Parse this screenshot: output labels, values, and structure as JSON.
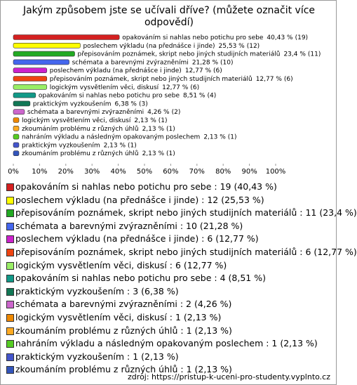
{
  "chart_data": {
    "type": "hbar",
    "title": "Jakým způsobem jste se učívali dříve? (můžete označit více odpovědí)",
    "categories": [
      "opakováním si nahlas nebo potichu pro sebe",
      "poslechem výkladu (na přednášce i jinde)",
      "přepisováním poznámek, skript nebo jiných studijních materiálů",
      "schémata a barevnými zvýrazněními",
      "poslechem výkladu (na přednášce i jinde)",
      "přepisováním poznámek, skript nebo jiných studijních materiálů",
      "logickým vysvětlením věci, diskusí",
      "opakováním si nahlas nebo potichu pro sebe",
      "praktickým vyzkoušením",
      "schémata a barevnými zvýrazněními",
      "logickým vysvětlením věci, diskusí",
      "zkoumáním problému z různých úhlů",
      "nahráním výkladu a následným opakovaným poslechem",
      "praktickým vyzkoušením",
      "zkoumáním problému z různých úhlů"
    ],
    "values": [
      40.43,
      25.53,
      23.4,
      21.28,
      12.77,
      12.77,
      12.77,
      8.51,
      6.38,
      4.26,
      2.13,
      2.13,
      2.13,
      2.13,
      2.13
    ],
    "value_labels": [
      "40,43 %",
      "25,53 %",
      "23,4 %",
      "21,28 %",
      "12,77 %",
      "12,77 %",
      "12,77 %",
      "8,51 %",
      "6,38 %",
      "4,26 %",
      "2,13 %",
      "2,13 %",
      "2,13 %",
      "2,13 %",
      "2,13 %"
    ],
    "count_labels": [
      "(19)",
      "(12)",
      "(11)",
      "(10)",
      "(6)",
      "(6)",
      "(6)",
      "(4)",
      "(3)",
      "(2)",
      "(1)",
      "(1)",
      "(1)",
      "(1)",
      "(1)"
    ],
    "colors": [
      "#d42020",
      "#ffff00",
      "#22aa22",
      "#4466ee",
      "#cc22cc",
      "#ee4411",
      "#99ee66",
      "#119988",
      "#117755",
      "#cc66cc",
      "#ee8800",
      "#ffaa22",
      "#55cc22",
      "#4455cc",
      "#3355bb"
    ],
    "legend": [
      "opakováním si nahlas nebo potichu pro sebe : 19 (40,43 %)",
      "poslechem výkladu (na přednášce i jinde) : 12 (25,53 %)",
      "přepisováním poznámek, skript nebo jiných studijních materiálů : 11 (23,4 %)",
      "schémata a barevnými zvýrazněními : 10 (21,28 %)",
      "poslechem výkladu (na přednášce i jinde) : 6 (12,77 %)",
      "přepisováním poznámek, skript nebo jiných studijních materiálů : 6 (12,77 %)",
      "logickým vysvětlením věci, diskusí : 6 (12,77 %)",
      "opakováním si nahlas nebo potichu pro sebe : 4 (8,51 %)",
      "praktickým vyzkoušením : 3 (6,38 %)",
      "schémata a barevnými zvýrazněními : 2 (4,26 %)",
      "logickým vysvětlením věci, diskusí : 1 (2,13 %)",
      "zkoumáním problému z různých úhlů : 1 (2,13 %)",
      "nahráním výkladu a následným opakovaným poslechem : 1 (2,13 %)",
      "praktickým vyzkoušením : 1 (2,13 %)",
      "zkoumáním problému z různých úhlů : 1 (2,13 %)"
    ],
    "xlim": [
      0,
      100
    ],
    "xticks": [
      {
        "value": 0,
        "label": "0%"
      },
      {
        "value": 10,
        "label": "10%"
      },
      {
        "value": 20,
        "label": "20%"
      },
      {
        "value": 30,
        "label": "30%"
      },
      {
        "value": 40,
        "label": "40%"
      },
      {
        "value": 50,
        "label": "50%"
      },
      {
        "value": 60,
        "label": "60%"
      },
      {
        "value": 70,
        "label": "70%"
      },
      {
        "value": 80,
        "label": "80%"
      },
      {
        "value": 90,
        "label": "90%"
      },
      {
        "value": 100,
        "label": "100%"
      }
    ],
    "grid": false,
    "source": "zdroj: https://pristup-k-uceni-pro-studenty.vyplnto.cz"
  }
}
